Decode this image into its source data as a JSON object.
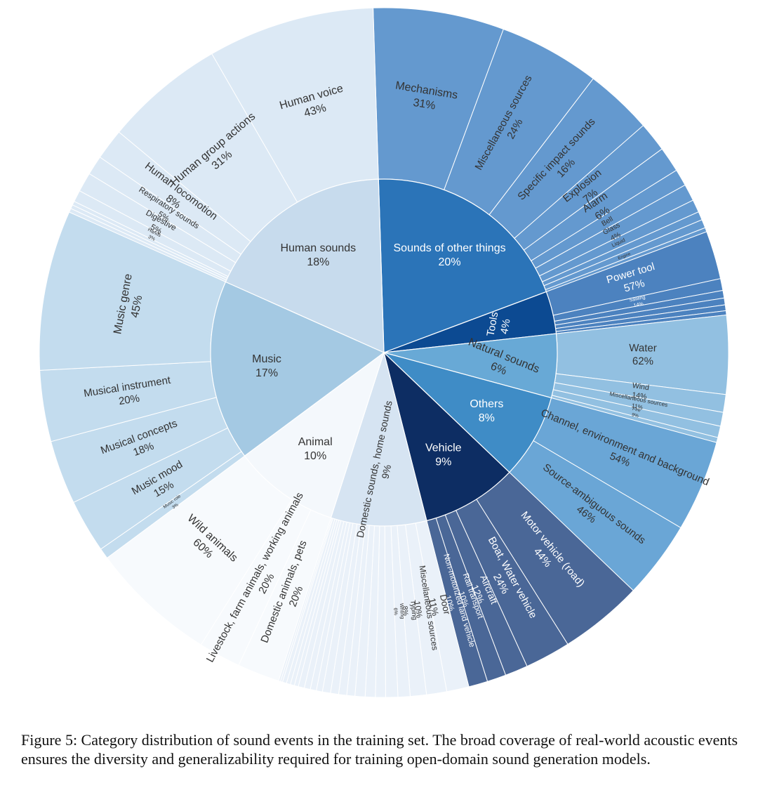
{
  "chart_data": {
    "type": "sunburst",
    "inner": [
      {
        "name": "Sounds of other things",
        "pct": "20%",
        "value": 20,
        "color": "#2b74b8"
      },
      {
        "name": "Tools",
        "pct": "4%",
        "value": 4,
        "color": "#0c4a92"
      },
      {
        "name": "Natural sounds",
        "pct": "6%",
        "value": 6,
        "color": "#68a9d6"
      },
      {
        "name": "Others",
        "pct": "8%",
        "value": 8,
        "color": "#3f8cc6"
      },
      {
        "name": "Vehicle",
        "pct": "9%",
        "value": 9,
        "color": "#0d2d63"
      },
      {
        "name": "Domestic sounds, home sounds",
        "pct": "9%",
        "value": 9,
        "color": "#d6e4f2"
      },
      {
        "name": "Animal",
        "pct": "10%",
        "value": 10,
        "color": "#f4f8fc"
      },
      {
        "name": "Music",
        "pct": "17%",
        "value": 17,
        "color": "#a4c9e3"
      },
      {
        "name": "Human sounds",
        "pct": "18%",
        "value": 18,
        "color": "#c7dbed"
      }
    ],
    "outer": [
      {
        "parent": "Sounds of other things",
        "color": "#6499cf",
        "children": [
          {
            "name": "Mechanisms",
            "pct": "31%",
            "value": 31
          },
          {
            "name": "Miscellaneous sources",
            "pct": "24%",
            "value": 24
          },
          {
            "name": "Specific impact sounds",
            "pct": "16%",
            "value": 16
          },
          {
            "name": "Explosion",
            "pct": "7%",
            "value": 7
          },
          {
            "name": "Alarm",
            "pct": "6%",
            "value": 6
          },
          {
            "name": "Bell",
            "pct": "",
            "value": 4
          },
          {
            "name": "Glass",
            "pct": "4%",
            "value": 4
          },
          {
            "name": "Liquid",
            "pct": "",
            "value": 3
          },
          {
            "name": "",
            "pct": "",
            "value": 2
          },
          {
            "name": "Engine",
            "pct": "",
            "value": 2
          },
          {
            "name": "",
            "pct": "",
            "value": 1
          }
        ]
      },
      {
        "parent": "Tools",
        "color": "#4c82bf",
        "children": [
          {
            "name": "Power tool",
            "pct": "57%",
            "value": 57
          },
          {
            "name": "Sawing",
            "pct": "14%",
            "value": 14
          },
          {
            "name": "",
            "pct": "",
            "value": 9
          },
          {
            "name": "",
            "pct": "",
            "value": 8
          },
          {
            "name": "",
            "pct": "",
            "value": 7
          },
          {
            "name": "",
            "pct": "",
            "value": 5
          }
        ]
      },
      {
        "parent": "Natural sounds",
        "color": "#92c0e1",
        "children": [
          {
            "name": "Water",
            "pct": "62%",
            "value": 62
          },
          {
            "name": "Wind",
            "pct": "14%",
            "value": 14
          },
          {
            "name": "Miscellaneous sources",
            "pct": "11%",
            "value": 11
          },
          {
            "name": "Fire",
            "pct": "9%",
            "value": 9
          },
          {
            "name": "",
            "pct": "",
            "value": 4
          }
        ]
      },
      {
        "parent": "Others",
        "color": "#6aa6d6",
        "children": [
          {
            "name": "Channel, environment and background",
            "pct": "54%",
            "value": 54
          },
          {
            "name": "Source-ambiguous sounds",
            "pct": "46%",
            "value": 46
          }
        ]
      },
      {
        "parent": "Vehicle",
        "color": "#4a6797",
        "children": [
          {
            "name": "Motor vehicle (road)",
            "pct": "44%",
            "value": 44
          },
          {
            "name": "Boat, Water vehicle",
            "pct": "24%",
            "value": 24
          },
          {
            "name": "Aircraft",
            "pct": "12%",
            "value": 12
          },
          {
            "name": "Rail transport",
            "pct": "10%",
            "value": 10
          },
          {
            "name": "Non-motorized land vehicle",
            "pct": "10%",
            "value": 10
          }
        ]
      },
      {
        "parent": "Domestic sounds, home sounds",
        "color": "#eaf1f9",
        "children": [
          {
            "name": "Door",
            "pct": "11%",
            "value": 11
          },
          {
            "name": "Miscellaneous sources",
            "pct": "10%",
            "value": 10
          },
          {
            "name": "Typing",
            "pct": "8%",
            "value": 8
          },
          {
            "name": "Writing",
            "pct": "6%",
            "value": 6
          },
          {
            "name": "",
            "pct": "",
            "value": 6
          },
          {
            "name": "",
            "pct": "",
            "value": 5
          },
          {
            "name": "",
            "pct": "",
            "value": 5
          },
          {
            "name": "",
            "pct": "",
            "value": 5
          },
          {
            "name": "",
            "pct": "",
            "value": 4
          },
          {
            "name": "",
            "pct": "",
            "value": 4
          },
          {
            "name": "",
            "pct": "",
            "value": 4
          },
          {
            "name": "",
            "pct": "",
            "value": 4
          },
          {
            "name": "",
            "pct": "",
            "value": 3
          },
          {
            "name": "",
            "pct": "",
            "value": 3
          },
          {
            "name": "",
            "pct": "",
            "value": 3
          },
          {
            "name": "",
            "pct": "",
            "value": 3
          },
          {
            "name": "",
            "pct": "",
            "value": 2
          },
          {
            "name": "",
            "pct": "",
            "value": 2
          },
          {
            "name": "",
            "pct": "",
            "value": 2
          },
          {
            "name": "",
            "pct": "",
            "value": 2
          },
          {
            "name": "",
            "pct": "",
            "value": 1
          },
          {
            "name": "",
            "pct": "",
            "value": 1
          }
        ]
      },
      {
        "parent": "Animal",
        "color": "#f7fafd",
        "children": [
          {
            "name": "Domestic animals, pets",
            "pct": "20%",
            "value": 20
          },
          {
            "name": "Livestock, farm animals, working animals",
            "pct": "20%",
            "value": 20
          },
          {
            "name": "Wild animals",
            "pct": "60%",
            "value": 60
          }
        ]
      },
      {
        "parent": "Music",
        "color": "#c3dcee",
        "children": [
          {
            "name": "Music role",
            "pct": "3%",
            "value": 3
          },
          {
            "name": "Music mood",
            "pct": "15%",
            "value": 15
          },
          {
            "name": "Musical concepts",
            "pct": "18%",
            "value": 18
          },
          {
            "name": "Musical instrument",
            "pct": "20%",
            "value": 20
          },
          {
            "name": "Music genre",
            "pct": "45%",
            "value": 45
          }
        ]
      },
      {
        "parent": "Human sounds",
        "color": "#dce9f5",
        "children": [
          {
            "name": "",
            "pct": "",
            "value": 1
          },
          {
            "name": "",
            "pct": "",
            "value": 1
          },
          {
            "name": "",
            "pct": "",
            "value": 1
          },
          {
            "name": "Hands",
            "pct": "3%",
            "value": 3
          },
          {
            "name": "Digestive",
            "pct": "5%",
            "value": 5
          },
          {
            "name": "Respiratory sounds",
            "pct": "5%",
            "value": 5
          },
          {
            "name": "Human locomotion",
            "pct": "8%",
            "value": 8
          },
          {
            "name": "Human group actions",
            "pct": "31%",
            "value": 31
          },
          {
            "name": "Human voice",
            "pct": "43%",
            "value": 43
          }
        ]
      }
    ]
  },
  "caption": "Figure 5: Category distribution of sound events in the training set. The broad coverage of real-world acoustic events ensures the diversity and generalizability required for training open-domain sound generation models."
}
